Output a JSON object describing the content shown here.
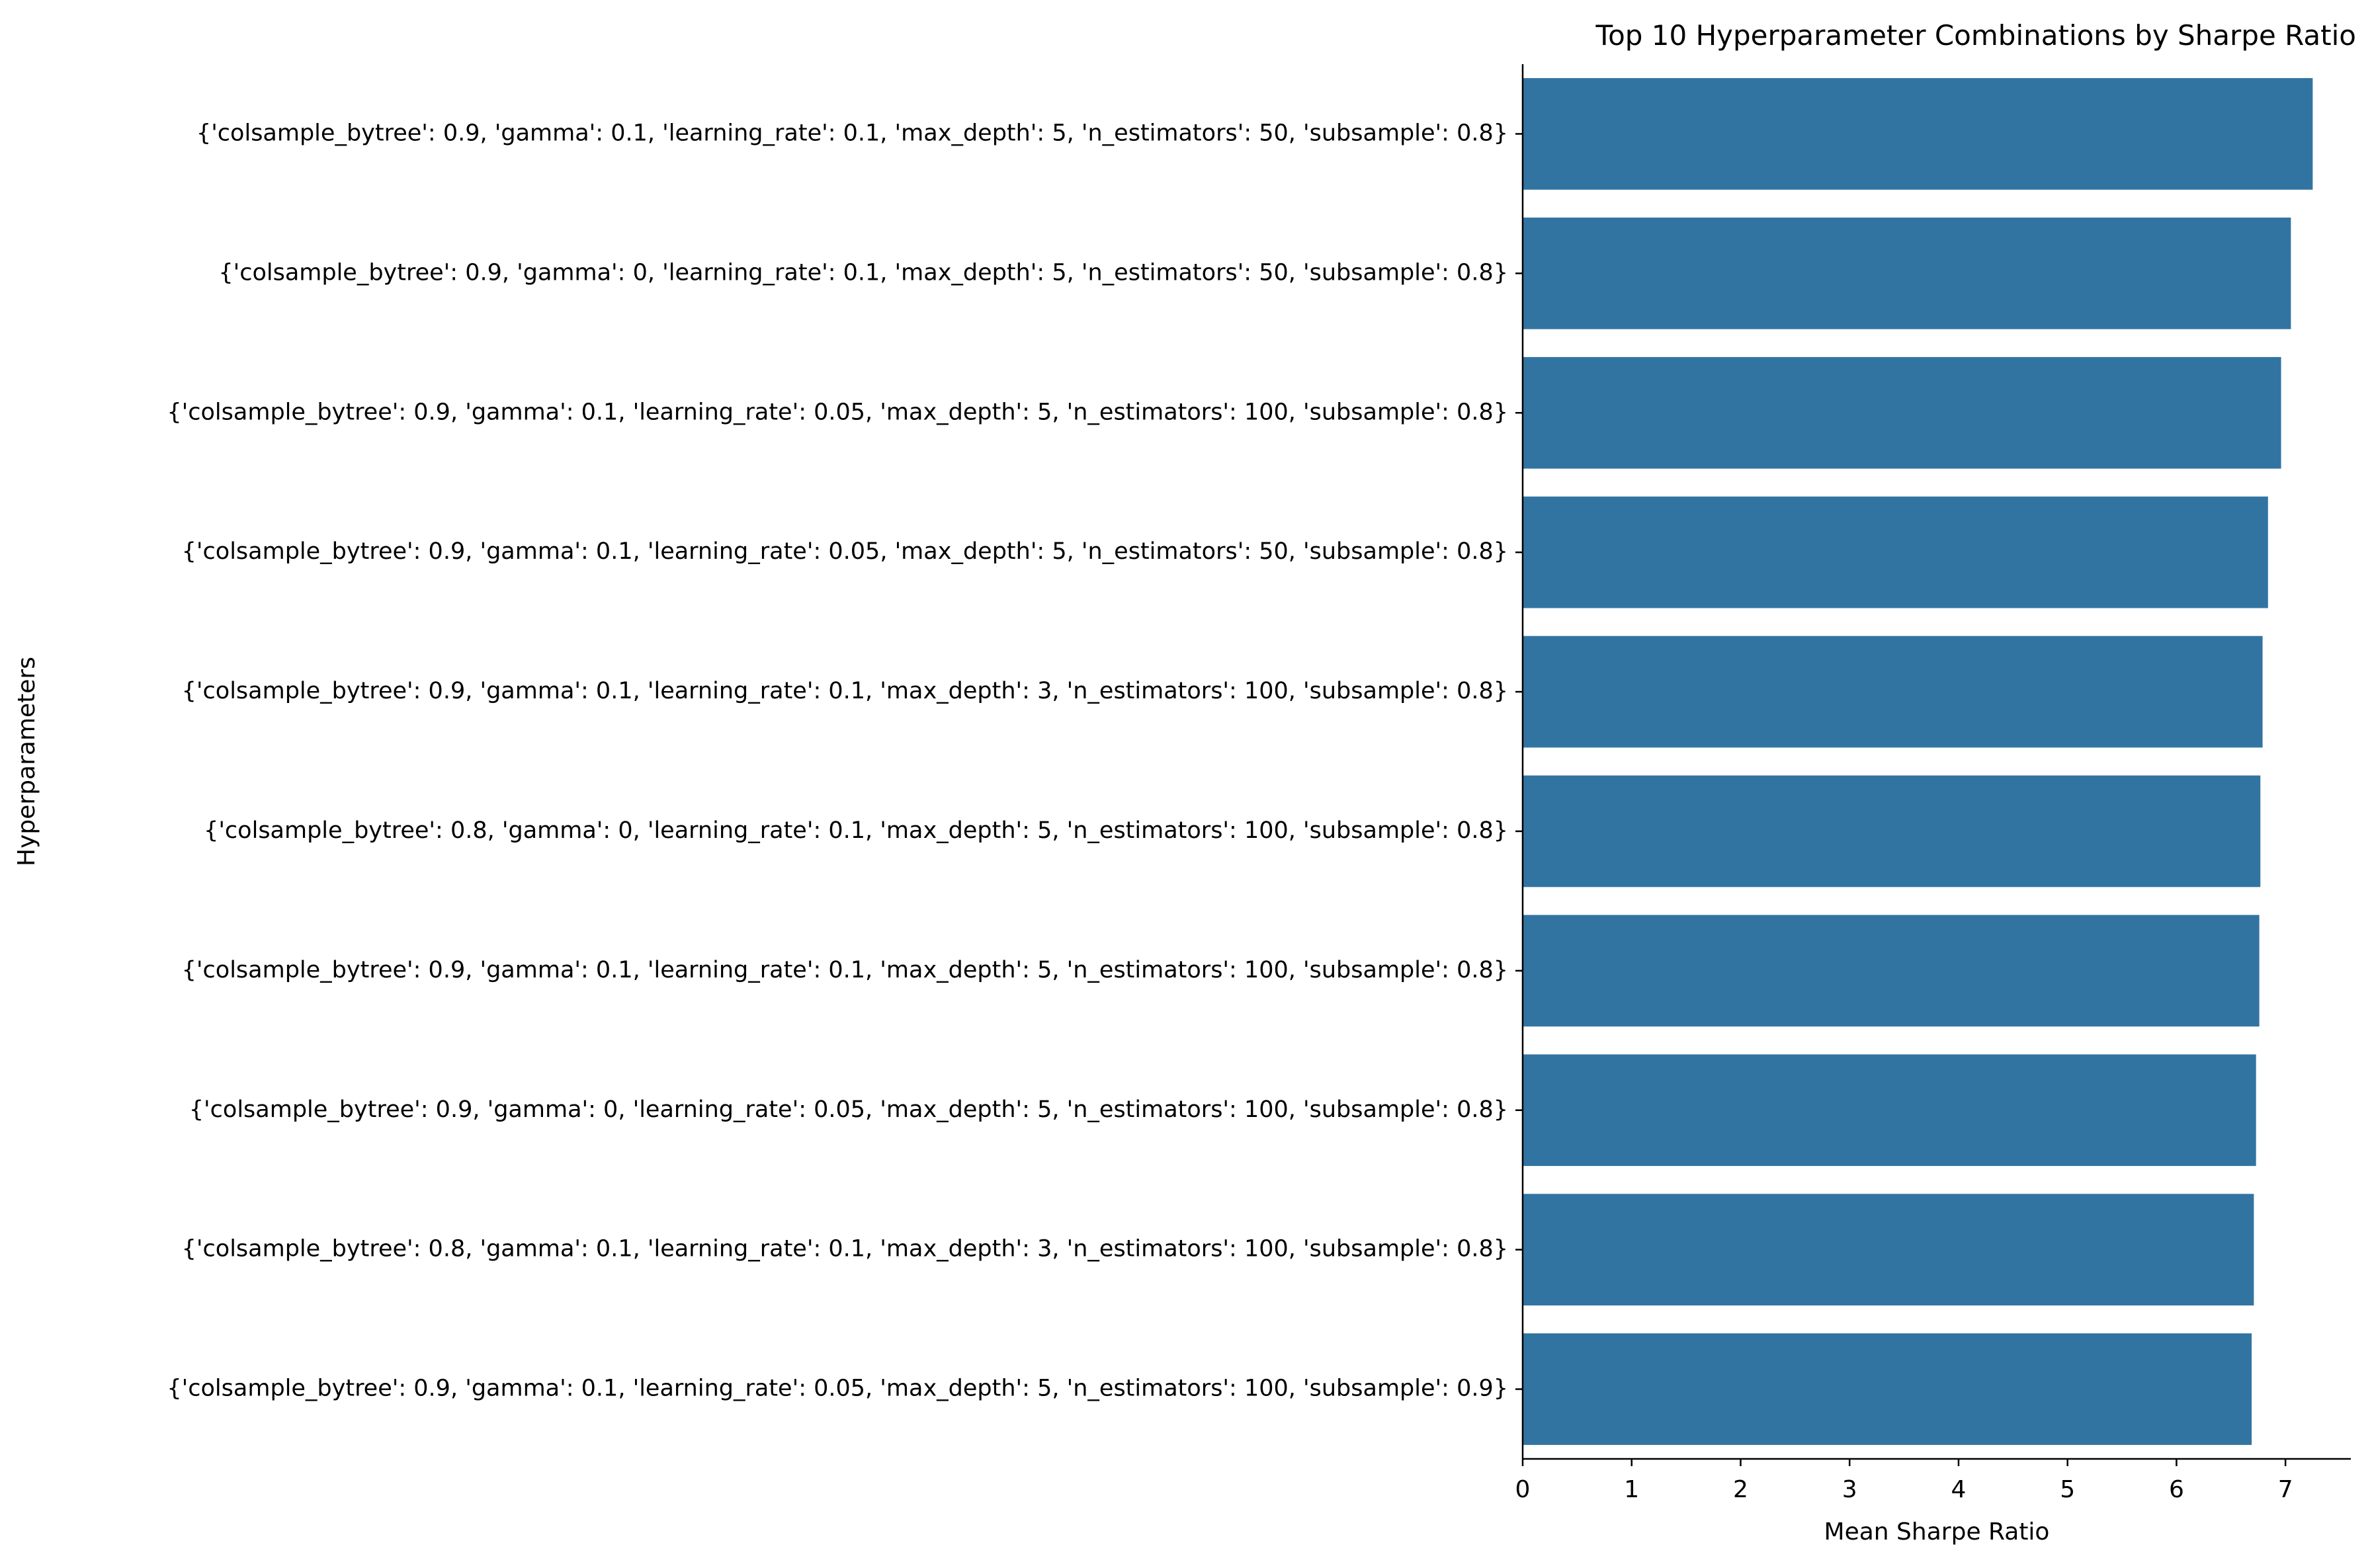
{
  "chart_data": {
    "type": "bar",
    "orientation": "horizontal",
    "title": "Top 10 Hyperparameter Combinations by Sharpe Ratio",
    "xlabel": "Mean Sharpe Ratio",
    "ylabel": "Hyperparameters",
    "xlim": [
      0,
      7.6
    ],
    "xticks": [
      0,
      1,
      2,
      3,
      4,
      5,
      6,
      7
    ],
    "grid": false,
    "bar_color": "#3274a1",
    "categories": [
      "{'colsample_bytree': 0.9, 'gamma': 0.1, 'learning_rate': 0.1, 'max_depth': 5, 'n_estimators': 50, 'subsample': 0.8}",
      "{'colsample_bytree': 0.9, 'gamma': 0, 'learning_rate': 0.1, 'max_depth': 5, 'n_estimators': 50, 'subsample': 0.8}",
      "{'colsample_bytree': 0.9, 'gamma': 0.1, 'learning_rate': 0.05, 'max_depth': 5, 'n_estimators': 100, 'subsample': 0.8}",
      "{'colsample_bytree': 0.9, 'gamma': 0.1, 'learning_rate': 0.05, 'max_depth': 5, 'n_estimators': 50, 'subsample': 0.8}",
      "{'colsample_bytree': 0.9, 'gamma': 0.1, 'learning_rate': 0.1, 'max_depth': 3, 'n_estimators': 100, 'subsample': 0.8}",
      "{'colsample_bytree': 0.8, 'gamma': 0, 'learning_rate': 0.1, 'max_depth': 5, 'n_estimators': 100, 'subsample': 0.8}",
      "{'colsample_bytree': 0.9, 'gamma': 0.1, 'learning_rate': 0.1, 'max_depth': 5, 'n_estimators': 100, 'subsample': 0.8}",
      "{'colsample_bytree': 0.9, 'gamma': 0, 'learning_rate': 0.05, 'max_depth': 5, 'n_estimators': 100, 'subsample': 0.8}",
      "{'colsample_bytree': 0.8, 'gamma': 0.1, 'learning_rate': 0.1, 'max_depth': 3, 'n_estimators': 100, 'subsample': 0.8}",
      "{'colsample_bytree': 0.9, 'gamma': 0.1, 'learning_rate': 0.05, 'max_depth': 5, 'n_estimators': 100, 'subsample': 0.9}"
    ],
    "values": [
      7.25,
      7.05,
      6.96,
      6.84,
      6.79,
      6.77,
      6.76,
      6.73,
      6.71,
      6.69
    ]
  }
}
